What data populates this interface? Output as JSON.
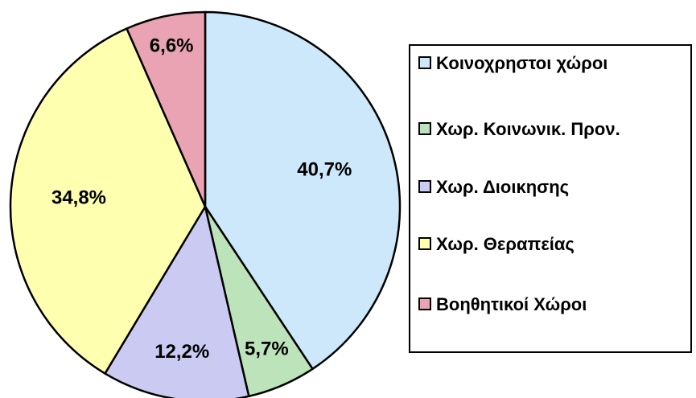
{
  "chart_data": {
    "type": "pie",
    "categories": [
      "Κοινοχρηστοι χώροι",
      "Χωρ. Κοινωνικ. Προν.",
      "Χωρ. Διοικησης",
      "Χωρ. Θεραπείας",
      "Βοηθητικοί Χώροι"
    ],
    "values": [
      40.7,
      5.7,
      12.2,
      34.8,
      6.6
    ],
    "value_labels": [
      "40,7%",
      "5,7%",
      "12,2%",
      "34,8%",
      "6,6%"
    ],
    "colors": [
      "#cce8fa",
      "#bde3bb",
      "#cacaf2",
      "#ffffb0",
      "#e9a3b3"
    ]
  }
}
